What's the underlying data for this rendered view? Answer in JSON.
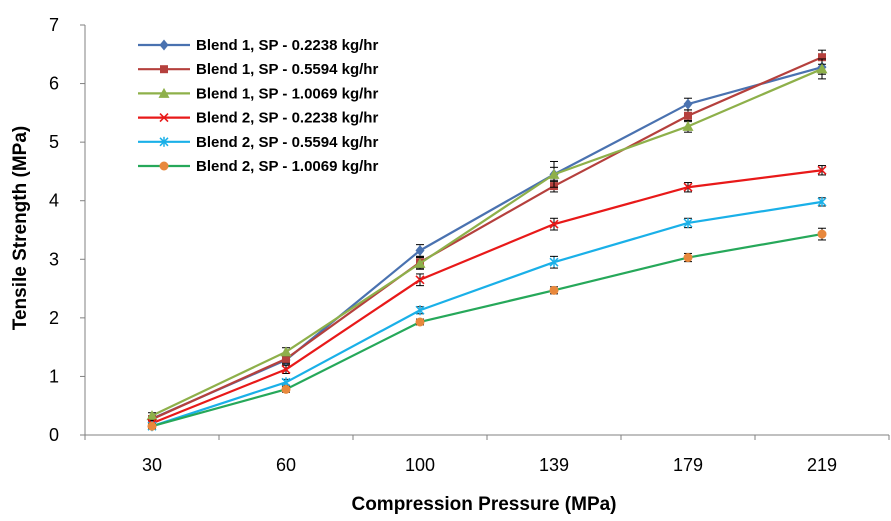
{
  "chart_data": {
    "type": "line",
    "title": "",
    "xlabel": "Compression Pressure (MPa)",
    "ylabel": "Tensile Strength (MPa)",
    "categories": [
      "30",
      "60",
      "100",
      "139",
      "179",
      "219"
    ],
    "ylim": [
      0,
      7
    ],
    "yticks": [
      "0",
      "1",
      "2",
      "3",
      "4",
      "5",
      "6",
      "7"
    ],
    "grid": false,
    "legend_position": "top-left",
    "series": [
      {
        "name": "Blend 1, SP - 0.2238 kg/hr",
        "values": [
          0.28,
          1.28,
          3.15,
          4.45,
          5.65,
          6.28
        ],
        "errors": [
          0.05,
          0.07,
          0.1,
          0.12,
          0.1,
          0.12
        ],
        "color": "#4a72b0",
        "marker": "diamond"
      },
      {
        "name": "Blend 1, SP - 0.5594 kg/hr",
        "values": [
          0.27,
          1.3,
          2.95,
          4.25,
          5.45,
          6.45
        ],
        "errors": [
          0.05,
          0.07,
          0.1,
          0.1,
          0.1,
          0.12
        ],
        "color": "#b5403d",
        "marker": "square"
      },
      {
        "name": "Blend 1, SP - 1.0069 kg/hr",
        "values": [
          0.33,
          1.42,
          2.93,
          4.45,
          5.27,
          6.25
        ],
        "errors": [
          0.05,
          0.07,
          0.1,
          0.22,
          0.1,
          0.17
        ],
        "color": "#8eb04a",
        "marker": "triangle"
      },
      {
        "name": "Blend 2, SP - 0.2238 kg/hr",
        "values": [
          0.2,
          1.12,
          2.65,
          3.6,
          4.23,
          4.52
        ],
        "errors": [
          0.05,
          0.07,
          0.1,
          0.1,
          0.08,
          0.08
        ],
        "color": "#e81919",
        "marker": "x"
      },
      {
        "name": "Blend 2, SP - 0.5594 kg/hr",
        "values": [
          0.15,
          0.9,
          2.13,
          2.95,
          3.62,
          3.98
        ],
        "errors": [
          0.04,
          0.05,
          0.06,
          0.1,
          0.08,
          0.07
        ],
        "color": "#1ab0e8",
        "marker": "star"
      },
      {
        "name": "Blend 2, SP - 1.0069 kg/hr",
        "values": [
          0.15,
          0.78,
          1.93,
          2.47,
          3.03,
          3.43
        ],
        "errors": [
          0.04,
          0.05,
          0.05,
          0.06,
          0.07,
          0.1
        ],
        "color": "#26a85a",
        "marker": "circle",
        "marker_color": "#e8883c"
      }
    ]
  }
}
